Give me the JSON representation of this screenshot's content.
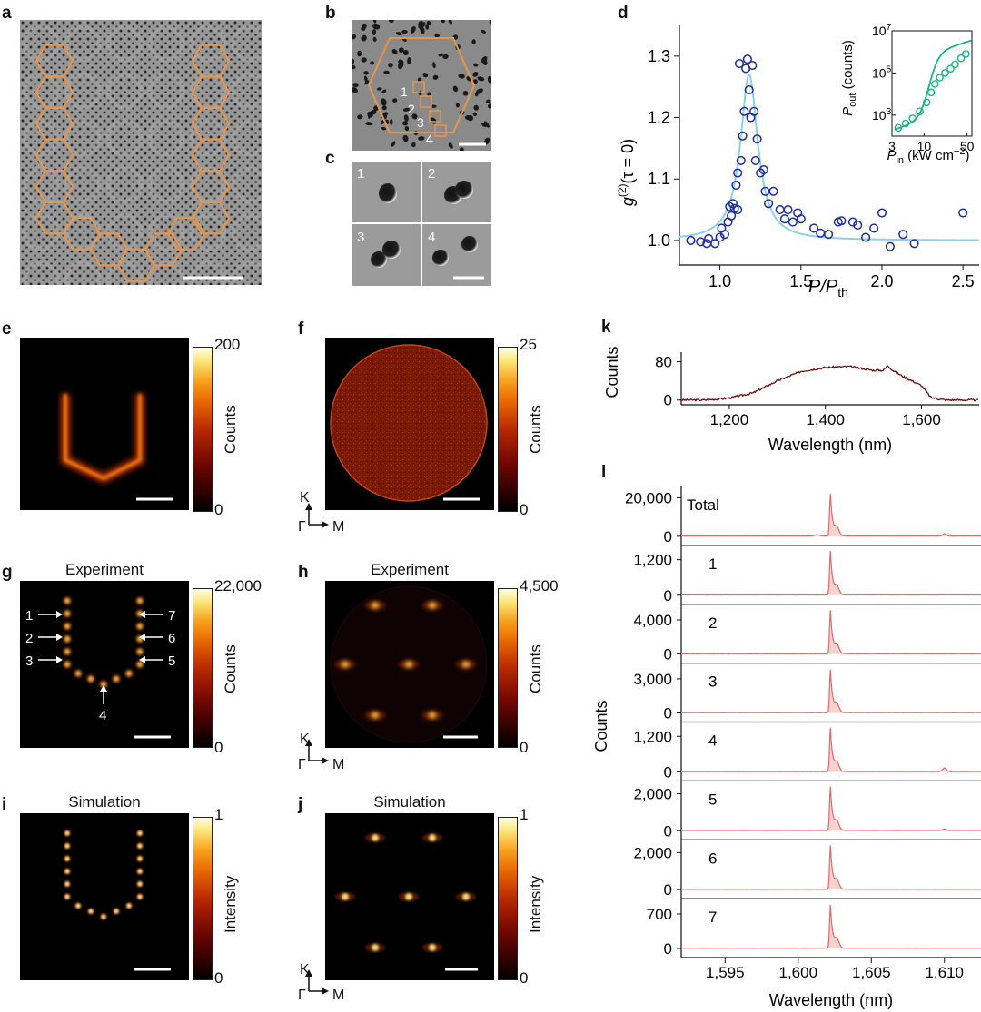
{
  "panels": {
    "a": "a",
    "b": "b",
    "c": "c",
    "d": "d",
    "e": "e",
    "f": "f",
    "g": "g",
    "h": "h",
    "i": "i",
    "j": "j",
    "k": "k",
    "l": "l"
  },
  "panel_c": {
    "cells": [
      "1",
      "2",
      "3",
      "4"
    ]
  },
  "panel_b": {
    "labels": [
      "1",
      "2",
      "3",
      "4"
    ]
  },
  "colorbars": {
    "e": {
      "max": "200",
      "min": "0",
      "label": "Counts"
    },
    "f": {
      "max": "25",
      "min": "0",
      "label": "Counts"
    },
    "g": {
      "max": "22,000",
      "min": "0",
      "label": "Counts"
    },
    "h": {
      "max": "4,500",
      "min": "0",
      "label": "Counts"
    },
    "i": {
      "max": "1",
      "min": "0",
      "label": "Intensity"
    },
    "j": {
      "max": "1",
      "min": "0",
      "label": "Intensity"
    }
  },
  "titles": {
    "g": "Experiment",
    "h": "Experiment",
    "i": "Simulation",
    "j": "Simulation"
  },
  "k_axes": {
    "K": "K",
    "Gamma": "Γ",
    "M": "M"
  },
  "site_labels": [
    "1",
    "2",
    "3",
    "4",
    "5",
    "6",
    "7"
  ],
  "colors": {
    "orange": "#e8964a",
    "blue_marker": "#1f2f9a",
    "blue_fit": "#8ed0e8",
    "green": "#1ab585",
    "dark_red": "#6b1010",
    "spectrum_red": "#e06a6a"
  },
  "chart_data": [
    {
      "id": "d",
      "type": "scatter",
      "xlabel": "P/P",
      "xlabel_sub": "th",
      "ylabel": "g",
      "ylabel_sup": "(2)",
      "ylabel_rest": "(τ = 0)",
      "xlim": [
        0.75,
        2.6
      ],
      "ylim": [
        0.96,
        1.35
      ],
      "xticks": [
        "1.0",
        "1.5",
        "2.0",
        "2.5"
      ],
      "xtick_values": [
        1.0,
        1.5,
        2.0,
        2.5
      ],
      "yticks": [
        "1.0",
        "1.1",
        "1.2",
        "1.3"
      ],
      "ytick_values": [
        1.0,
        1.1,
        1.2,
        1.3
      ],
      "points": [
        [
          0.82,
          1.0
        ],
        [
          0.88,
          0.998
        ],
        [
          0.92,
          0.995
        ],
        [
          0.93,
          1.003
        ],
        [
          0.97,
          0.995
        ],
        [
          1.0,
          1.005
        ],
        [
          1.01,
          1.02
        ],
        [
          1.03,
          1.01
        ],
        [
          1.05,
          1.03
        ],
        [
          1.06,
          1.055
        ],
        [
          1.07,
          1.04
        ],
        [
          1.08,
          1.06
        ],
        [
          1.09,
          1.052
        ],
        [
          1.1,
          1.09
        ],
        [
          1.11,
          1.11
        ],
        [
          1.11,
          1.05
        ],
        [
          1.12,
          1.288
        ],
        [
          1.13,
          1.13
        ],
        [
          1.14,
          1.17
        ],
        [
          1.15,
          1.21
        ],
        [
          1.16,
          1.28
        ],
        [
          1.17,
          1.295
        ],
        [
          1.18,
          1.245
        ],
        [
          1.19,
          1.2
        ],
        [
          1.2,
          1.285
        ],
        [
          1.21,
          1.21
        ],
        [
          1.22,
          1.13
        ],
        [
          1.23,
          1.165
        ],
        [
          1.25,
          1.11
        ],
        [
          1.27,
          1.115
        ],
        [
          1.28,
          1.08
        ],
        [
          1.3,
          1.06
        ],
        [
          1.33,
          1.08
        ],
        [
          1.37,
          1.05
        ],
        [
          1.4,
          1.035
        ],
        [
          1.42,
          1.05
        ],
        [
          1.45,
          1.03
        ],
        [
          1.48,
          1.045
        ],
        [
          1.5,
          1.035
        ],
        [
          1.58,
          1.02
        ],
        [
          1.62,
          1.012
        ],
        [
          1.67,
          1.01
        ],
        [
          1.73,
          1.03
        ],
        [
          1.75,
          1.032
        ],
        [
          1.82,
          1.03
        ],
        [
          1.85,
          1.025
        ],
        [
          1.9,
          1.005
        ],
        [
          1.95,
          1.02
        ],
        [
          2.0,
          1.045
        ],
        [
          2.05,
          0.99
        ],
        [
          2.13,
          1.01
        ],
        [
          2.2,
          0.995
        ],
        [
          2.5,
          1.045
        ]
      ],
      "fit": "lorentzian peak at 1.18, height 1.27, baseline 1.0",
      "inset": {
        "type": "line",
        "xlabel": "P",
        "xlabel_sub": "in",
        "xlabel_rest": " (kW cm",
        "xlabel_sup": "−2",
        "xlabel_end": ")",
        "ylabel": "P",
        "ylabel_sub": "out",
        "ylabel_rest": " (counts)",
        "xticks": [
          "3",
          "10",
          "50"
        ],
        "xtick_values": [
          3,
          10,
          50
        ],
        "yticks": [
          "10",
          "10",
          "10"
        ],
        "ytick_exps": [
          "3",
          "5",
          "7"
        ],
        "ytick_values": [
          1000,
          100000,
          10000000
        ],
        "xlim": [
          3,
          60
        ],
        "ylim_log10": [
          2,
          7
        ],
        "points": [
          [
            3.8,
            250
          ],
          [
            5,
            400
          ],
          [
            6.5,
            700
          ],
          [
            8.5,
            1500
          ],
          [
            11,
            4000
          ],
          [
            13,
            12000
          ],
          [
            15,
            30000
          ],
          [
            18,
            60000
          ],
          [
            22,
            100000
          ],
          [
            27,
            160000
          ],
          [
            32,
            260000
          ],
          [
            40,
            500000
          ],
          [
            48,
            800000
          ]
        ]
      }
    },
    {
      "id": "k",
      "type": "line",
      "xlabel": "Wavelength (nm)",
      "ylabel": "Counts",
      "xlim": [
        1100,
        1720
      ],
      "ylim": [
        -10,
        100
      ],
      "xticks": [
        "1,200",
        "1,400",
        "1,600"
      ],
      "xtick_values": [
        1200,
        1400,
        1600
      ],
      "yticks": [
        "0",
        "80"
      ],
      "ytick_values": [
        0,
        80
      ],
      "x": [
        1100,
        1150,
        1200,
        1250,
        1300,
        1350,
        1400,
        1450,
        1500,
        1520,
        1530,
        1540,
        1560,
        1600,
        1620,
        1650,
        1700,
        1720
      ],
      "y": [
        0,
        0,
        4,
        15,
        40,
        60,
        68,
        70,
        62,
        62,
        72,
        62,
        50,
        30,
        5,
        0,
        0,
        0
      ]
    },
    {
      "id": "l",
      "type": "line",
      "xlabel": "Wavelength (nm)",
      "ylabel": "Counts",
      "xlim": [
        1592.0,
        1612.5
      ],
      "xticks": [
        "1,595",
        "1,600",
        "1,605",
        "1,610"
      ],
      "xtick_values": [
        1595,
        1600,
        1605,
        1610
      ],
      "peak_nm": 1602.2,
      "series": [
        {
          "name": "Total",
          "ytick": "20,000",
          "ytick_value": 20000,
          "ymax": 23000,
          "peak": 22000,
          "side_peak": 1200
        },
        {
          "name": "1",
          "ytick": "1,200",
          "ytick_value": 1200,
          "ymax": 1500,
          "peak": 1480,
          "side_peak": 0
        },
        {
          "name": "2",
          "ytick": "4,000",
          "ytick_value": 4000,
          "ymax": 5200,
          "peak": 5100,
          "side_peak": 0
        },
        {
          "name": "3",
          "ytick": "3,000",
          "ytick_value": 3000,
          "ymax": 3900,
          "peak": 3800,
          "side_peak": 0
        },
        {
          "name": "4",
          "ytick": "1,200",
          "ytick_value": 1200,
          "ymax": 1500,
          "peak": 1480,
          "side_peak": 120
        },
        {
          "name": "5",
          "ytick": "2,000",
          "ytick_value": 2000,
          "ymax": 2400,
          "peak": 2380,
          "side_peak": 80
        },
        {
          "name": "6",
          "ytick": "2,000",
          "ytick_value": 2000,
          "ymax": 2400,
          "peak": 2380,
          "side_peak": 0
        },
        {
          "name": "7",
          "ytick": "700",
          "ytick_value": 700,
          "ymax": 900,
          "peak": 880,
          "side_peak": 0
        }
      ],
      "zero_tick": "0"
    }
  ]
}
